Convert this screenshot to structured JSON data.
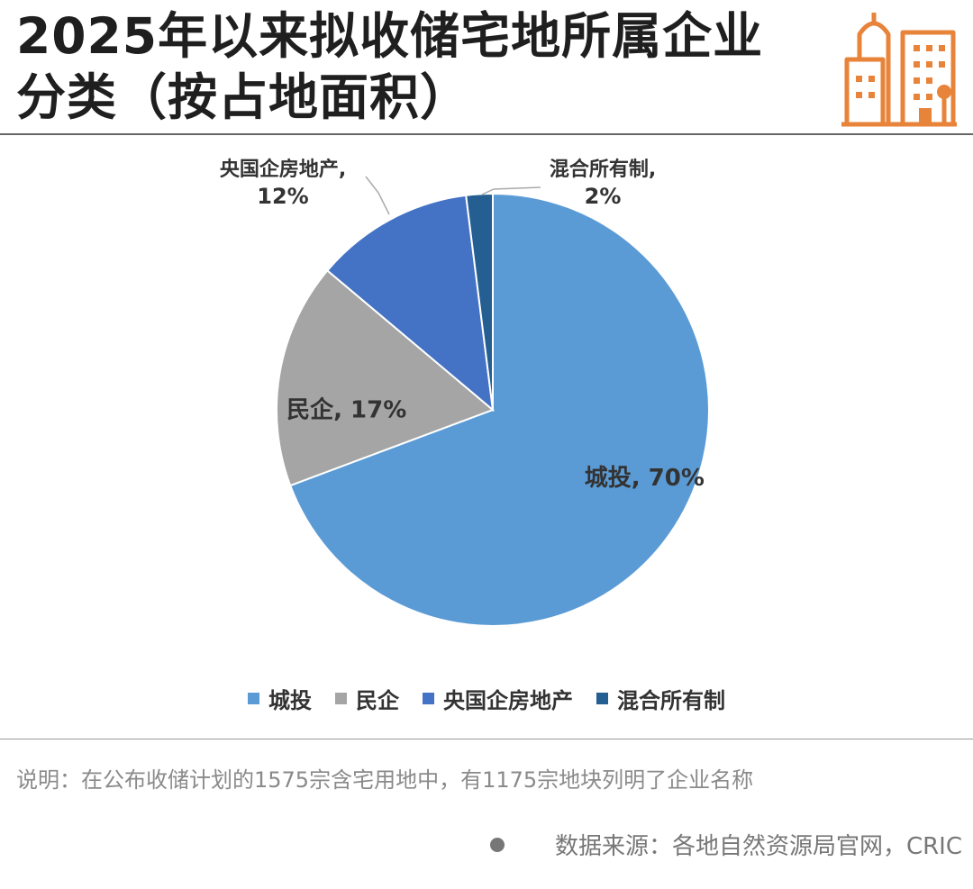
{
  "header": {
    "title": "2025年以来拟收储宅地所属企业分类（按占地面积）",
    "logo_icon": "city-buildings-icon",
    "accent_color": "#E8833A"
  },
  "chart_data": {
    "type": "pie",
    "title": "2025年以来拟收储宅地所属企业分类（按占地面积）",
    "categories": [
      "城投",
      "民企",
      "央国企房地产",
      "混合所有制"
    ],
    "values": [
      70,
      17,
      12,
      2
    ],
    "unit": "%",
    "data_labels": [
      "城投, 70%",
      "民企, 17%",
      "央国企房地产, 12%",
      "混合所有制, 2%"
    ],
    "colors": [
      "#5B9BD5",
      "#A5A5A5",
      "#4472C4",
      "#255E91"
    ],
    "legend_position": "bottom"
  },
  "footer": {
    "note": "说明：在公布收储计划的1575宗含宅用地中，有1175宗地块列明了企业名称",
    "source": "数据来源：各地自然资源局官网，CRIC"
  }
}
